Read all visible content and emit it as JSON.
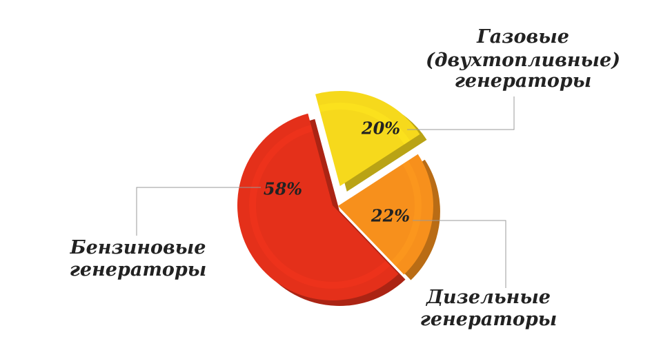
{
  "chart_data": {
    "type": "pie",
    "categories": [
      [
        "Газовые",
        "(двухтопливные)",
        "генераторы"
      ],
      [
        "Дизельные",
        "генераторы"
      ],
      [
        "Бензиновые",
        "генераторы"
      ]
    ],
    "values": [
      20,
      22,
      58
    ],
    "value_labels": [
      "20%",
      "22%",
      "58%"
    ],
    "colors": [
      "#f6d91c",
      "#f7901c",
      "#e4301a"
    ]
  }
}
